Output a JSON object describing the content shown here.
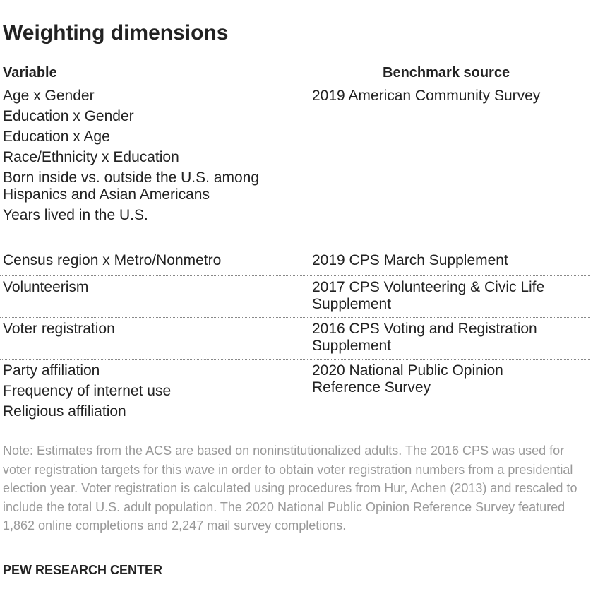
{
  "header": {
    "title": "Weighting dimensions"
  },
  "table": {
    "columns": [
      "Variable",
      "Benchmark source"
    ],
    "rows": [
      {
        "variables": [
          "Age x Gender",
          "Education x Gender",
          "Education x Age",
          "Race/Ethnicity x Education",
          "Born inside vs. outside the U.S. among Hispanics and Asian Americans",
          "Years lived in the U.S."
        ],
        "source": "2019 American Community Survey"
      },
      {
        "variables": [
          "Census region x Metro/Nonmetro"
        ],
        "source": "2019 CPS March Supplement"
      },
      {
        "variables": [
          "Volunteerism"
        ],
        "source": "2017 CPS Volunteering & Civic Life Supplement"
      },
      {
        "variables": [
          "Voter registration"
        ],
        "source": "2016 CPS Voting and Registration Supplement"
      },
      {
        "variables": [
          "Party affiliation",
          "Frequency of internet use",
          "Religious affiliation"
        ],
        "source": "2020 National Public Opinion Reference Survey"
      }
    ]
  },
  "note": "Note: Estimates from the ACS are based on noninstitutionalized adults.  The 2016 CPS was used for voter registration targets for this wave in order to obtain voter registration numbers from a presidential election year. Voter registration is calculated using procedures from Hur, Achen (2013) and rescaled to include the total U.S. adult population. The 2020 National Public Opinion Reference Survey featured 1,862 online completions and 2,247 mail survey completions.",
  "footer": {
    "source": "PEW RESEARCH CENTER"
  }
}
